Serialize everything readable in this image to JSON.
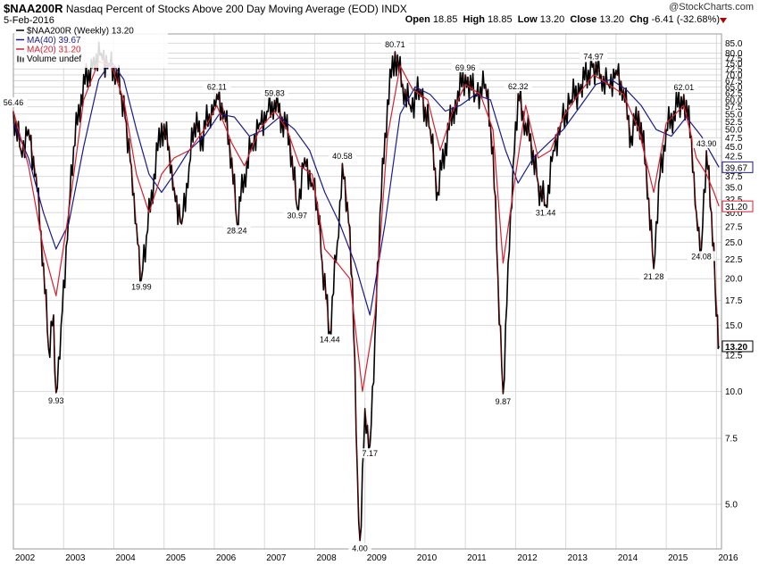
{
  "header": {
    "symbol": "$NAA200R",
    "description": "Nasdaq Percent of Stocks Above 200 Day Moving Average (EOD)",
    "exchange": "INDX",
    "date": "5-Feb-2016",
    "open_label": "Open",
    "open_value": "18.85",
    "high_label": "High",
    "high_value": "18.85",
    "low_label": "Low",
    "low_value": "13.20",
    "close_label": "Close",
    "close_value": "13.20",
    "chg_label": "Chg",
    "chg_value": "-6.41 (-32.68%)",
    "watermark": "@StockCharts.com"
  },
  "colors": {
    "price": "#000000",
    "down": "#b00000",
    "ma40": "#1a1a8c",
    "ma20": "#d42030",
    "grid": "#d9d9d9",
    "frame": "#999999"
  },
  "chart_data": {
    "type": "line",
    "scale": "log",
    "ylim": [
      3.8,
      90
    ],
    "y_ticks": [
      "85.0",
      "80.0",
      "77.5",
      "75.0",
      "72.5",
      "70.0",
      "67.5",
      "65.0",
      "62.5",
      "60.0",
      "57.5",
      "55.0",
      "52.5",
      "50.0",
      "47.5",
      "45.0",
      "42.5",
      "40.0",
      "37.5",
      "35.0",
      "32.5",
      "30.0",
      "27.5",
      "25.0",
      "22.5",
      "20.0",
      "17.5",
      "15.0",
      "12.5",
      "10.0",
      "7.5",
      "5.0"
    ],
    "x_range": [
      2002.0,
      2016.1
    ],
    "x_ticks": [
      "2002",
      "2003",
      "2004",
      "2005",
      "2006",
      "2007",
      "2008",
      "2009",
      "2010",
      "2011",
      "2012",
      "2013",
      "2014",
      "2015",
      "2016"
    ],
    "legend": [
      {
        "label": "$NAA200R (Weekly) 13.20",
        "color_key": "price",
        "marker": "line"
      },
      {
        "label": "MA(40) 39.67",
        "color_key": "ma40",
        "marker": "line"
      },
      {
        "label": "MA(20) 31.20",
        "color_key": "ma20",
        "marker": "line"
      },
      {
        "label": "Volume undef",
        "color_key": "price",
        "marker": "bars"
      }
    ],
    "right_labels": [
      {
        "text": "39.67",
        "value": 39.67,
        "color_key": "ma40"
      },
      {
        "text": "31.20",
        "value": 31.2,
        "color_key": "ma20"
      },
      {
        "text": "13.20",
        "value": 13.2,
        "color_key": "price",
        "bold": true
      }
    ],
    "annotations": [
      {
        "text": "56.46",
        "x": 2002.0,
        "y": 56.46,
        "pos": "above"
      },
      {
        "text": "9.93",
        "x": 2002.85,
        "y": 9.93,
        "pos": "below"
      },
      {
        "text": "19.99",
        "x": 2004.55,
        "y": 19.99,
        "pos": "below"
      },
      {
        "text": "62.11",
        "x": 2006.05,
        "y": 62.11,
        "pos": "above"
      },
      {
        "text": "28.24",
        "x": 2006.45,
        "y": 28.24,
        "pos": "below"
      },
      {
        "text": "59.83",
        "x": 2007.2,
        "y": 59.83,
        "pos": "above"
      },
      {
        "text": "30.97",
        "x": 2007.65,
        "y": 30.97,
        "pos": "below"
      },
      {
        "text": "40.58",
        "x": 2008.55,
        "y": 40.58,
        "pos": "above"
      },
      {
        "text": "14.44",
        "x": 2008.3,
        "y": 14.44,
        "pos": "below"
      },
      {
        "text": "4.00",
        "x": 2008.9,
        "y": 4.0,
        "pos": "below"
      },
      {
        "text": "7.17",
        "x": 2009.1,
        "y": 7.17,
        "pos": "below"
      },
      {
        "text": "80.71",
        "x": 2009.6,
        "y": 80.71,
        "pos": "above"
      },
      {
        "text": "69.96",
        "x": 2011.0,
        "y": 69.96,
        "pos": "above"
      },
      {
        "text": "9.87",
        "x": 2011.75,
        "y": 9.87,
        "pos": "below"
      },
      {
        "text": "62.32",
        "x": 2012.05,
        "y": 62.32,
        "pos": "above"
      },
      {
        "text": "31.44",
        "x": 2012.6,
        "y": 31.44,
        "pos": "below"
      },
      {
        "text": "74.97",
        "x": 2013.55,
        "y": 74.97,
        "pos": "above"
      },
      {
        "text": "21.28",
        "x": 2014.75,
        "y": 21.28,
        "pos": "below"
      },
      {
        "text": "62.01",
        "x": 2015.35,
        "y": 62.01,
        "pos": "above"
      },
      {
        "text": "43.90",
        "x": 2015.8,
        "y": 43.9,
        "pos": "above"
      },
      {
        "text": "24.08",
        "x": 2015.7,
        "y": 24.08,
        "pos": "below"
      }
    ],
    "series": [
      {
        "name": "$NAA200R (Weekly)",
        "color_key": "price",
        "points": [
          [
            2002.0,
            56
          ],
          [
            2002.15,
            44
          ],
          [
            2002.3,
            50
          ],
          [
            2002.45,
            38
          ],
          [
            2002.6,
            22
          ],
          [
            2002.7,
            13
          ],
          [
            2002.8,
            16
          ],
          [
            2002.85,
            9.93
          ],
          [
            2002.95,
            15
          ],
          [
            2003.1,
            30
          ],
          [
            2003.2,
            45
          ],
          [
            2003.35,
            62
          ],
          [
            2003.5,
            72
          ],
          [
            2003.6,
            78
          ],
          [
            2003.75,
            80
          ],
          [
            2003.9,
            75
          ],
          [
            2004.05,
            72
          ],
          [
            2004.15,
            62
          ],
          [
            2004.25,
            52
          ],
          [
            2004.35,
            40
          ],
          [
            2004.45,
            28
          ],
          [
            2004.55,
            19.99
          ],
          [
            2004.65,
            26
          ],
          [
            2004.8,
            38
          ],
          [
            2004.95,
            52
          ],
          [
            2005.1,
            45
          ],
          [
            2005.2,
            35
          ],
          [
            2005.35,
            28
          ],
          [
            2005.5,
            40
          ],
          [
            2005.6,
            52
          ],
          [
            2005.75,
            48
          ],
          [
            2005.9,
            55
          ],
          [
            2006.0,
            60
          ],
          [
            2006.05,
            62.11
          ],
          [
            2006.2,
            56
          ],
          [
            2006.35,
            42
          ],
          [
            2006.45,
            28.24
          ],
          [
            2006.6,
            38
          ],
          [
            2006.75,
            46
          ],
          [
            2006.9,
            52
          ],
          [
            2007.05,
            56
          ],
          [
            2007.2,
            59.83
          ],
          [
            2007.35,
            54
          ],
          [
            2007.5,
            48
          ],
          [
            2007.65,
            30.97
          ],
          [
            2007.8,
            42
          ],
          [
            2007.95,
            36
          ],
          [
            2008.05,
            32
          ],
          [
            2008.15,
            22
          ],
          [
            2008.3,
            14.44
          ],
          [
            2008.45,
            25
          ],
          [
            2008.55,
            40.58
          ],
          [
            2008.65,
            32
          ],
          [
            2008.75,
            20
          ],
          [
            2008.85,
            6
          ],
          [
            2008.9,
            4.0
          ],
          [
            2009.0,
            9
          ],
          [
            2009.1,
            7.17
          ],
          [
            2009.2,
            14
          ],
          [
            2009.3,
            30
          ],
          [
            2009.45,
            60
          ],
          [
            2009.6,
            80.71
          ],
          [
            2009.75,
            66
          ],
          [
            2009.9,
            58
          ],
          [
            2010.1,
            64
          ],
          [
            2010.3,
            50
          ],
          [
            2010.45,
            34
          ],
          [
            2010.6,
            46
          ],
          [
            2010.8,
            60
          ],
          [
            2011.0,
            69.96
          ],
          [
            2011.2,
            62
          ],
          [
            2011.4,
            66
          ],
          [
            2011.55,
            45
          ],
          [
            2011.65,
            20
          ],
          [
            2011.75,
            9.87
          ],
          [
            2011.85,
            22
          ],
          [
            2011.95,
            40
          ],
          [
            2012.05,
            62.32
          ],
          [
            2012.2,
            52
          ],
          [
            2012.35,
            44
          ],
          [
            2012.45,
            36
          ],
          [
            2012.6,
            31.44
          ],
          [
            2012.75,
            44
          ],
          [
            2012.9,
            52
          ],
          [
            2013.1,
            60
          ],
          [
            2013.3,
            66
          ],
          [
            2013.55,
            74.97
          ],
          [
            2013.7,
            70
          ],
          [
            2013.85,
            66
          ],
          [
            2014.0,
            72
          ],
          [
            2014.15,
            64
          ],
          [
            2014.3,
            48
          ],
          [
            2014.45,
            56
          ],
          [
            2014.6,
            40
          ],
          [
            2014.75,
            21.28
          ],
          [
            2014.85,
            36
          ],
          [
            2015.0,
            50
          ],
          [
            2015.15,
            56
          ],
          [
            2015.35,
            62.01
          ],
          [
            2015.5,
            48
          ],
          [
            2015.6,
            30
          ],
          [
            2015.7,
            24.08
          ],
          [
            2015.8,
            43.9
          ],
          [
            2015.9,
            30
          ],
          [
            2015.97,
            19.6
          ],
          [
            2016.02,
            16
          ],
          [
            2016.05,
            13.2
          ]
        ]
      },
      {
        "name": "MA(40)",
        "color_key": "ma40",
        "points": [
          [
            2002.0,
            52
          ],
          [
            2002.3,
            42
          ],
          [
            2002.6,
            30
          ],
          [
            2002.85,
            24
          ],
          [
            2003.1,
            28
          ],
          [
            2003.4,
            45
          ],
          [
            2003.7,
            68
          ],
          [
            2003.95,
            76
          ],
          [
            2004.2,
            68
          ],
          [
            2004.45,
            50
          ],
          [
            2004.7,
            38
          ],
          [
            2004.95,
            34
          ],
          [
            2005.2,
            38
          ],
          [
            2005.5,
            44
          ],
          [
            2005.8,
            48
          ],
          [
            2006.1,
            55
          ],
          [
            2006.4,
            54
          ],
          [
            2006.7,
            48
          ],
          [
            2007.0,
            50
          ],
          [
            2007.3,
            54
          ],
          [
            2007.6,
            50
          ],
          [
            2007.9,
            44
          ],
          [
            2008.2,
            34
          ],
          [
            2008.5,
            28
          ],
          [
            2008.8,
            22
          ],
          [
            2009.1,
            16
          ],
          [
            2009.4,
            28
          ],
          [
            2009.7,
            55
          ],
          [
            2010.0,
            65
          ],
          [
            2010.3,
            62
          ],
          [
            2010.6,
            56
          ],
          [
            2010.9,
            58
          ],
          [
            2011.2,
            62
          ],
          [
            2011.5,
            60
          ],
          [
            2011.8,
            44
          ],
          [
            2012.05,
            36
          ],
          [
            2012.35,
            42
          ],
          [
            2012.65,
            46
          ],
          [
            2012.95,
            50
          ],
          [
            2013.3,
            58
          ],
          [
            2013.6,
            66
          ],
          [
            2013.9,
            68
          ],
          [
            2014.2,
            64
          ],
          [
            2014.5,
            58
          ],
          [
            2014.8,
            50
          ],
          [
            2015.1,
            48
          ],
          [
            2015.4,
            54
          ],
          [
            2015.7,
            48
          ],
          [
            2015.9,
            43
          ],
          [
            2016.05,
            39.67
          ]
        ]
      },
      {
        "name": "MA(20)",
        "color_key": "ma20",
        "points": [
          [
            2002.0,
            56
          ],
          [
            2002.3,
            40
          ],
          [
            2002.6,
            24
          ],
          [
            2002.85,
            18
          ],
          [
            2003.1,
            30
          ],
          [
            2003.4,
            60
          ],
          [
            2003.7,
            76
          ],
          [
            2003.95,
            74
          ],
          [
            2004.2,
            60
          ],
          [
            2004.45,
            38
          ],
          [
            2004.7,
            30
          ],
          [
            2004.95,
            38
          ],
          [
            2005.2,
            42
          ],
          [
            2005.5,
            44
          ],
          [
            2005.8,
            50
          ],
          [
            2006.05,
            58
          ],
          [
            2006.35,
            46
          ],
          [
            2006.6,
            40
          ],
          [
            2006.9,
            50
          ],
          [
            2007.2,
            56
          ],
          [
            2007.45,
            50
          ],
          [
            2007.7,
            40
          ],
          [
            2007.95,
            38
          ],
          [
            2008.2,
            24
          ],
          [
            2008.45,
            22
          ],
          [
            2008.7,
            20
          ],
          [
            2008.95,
            10
          ],
          [
            2009.2,
            16
          ],
          [
            2009.45,
            48
          ],
          [
            2009.7,
            74
          ],
          [
            2009.95,
            64
          ],
          [
            2010.25,
            60
          ],
          [
            2010.5,
            44
          ],
          [
            2010.75,
            56
          ],
          [
            2011.0,
            66
          ],
          [
            2011.3,
            62
          ],
          [
            2011.55,
            50
          ],
          [
            2011.75,
            22
          ],
          [
            2011.95,
            34
          ],
          [
            2012.2,
            58
          ],
          [
            2012.45,
            42
          ],
          [
            2012.7,
            44
          ],
          [
            2012.95,
            54
          ],
          [
            2013.25,
            62
          ],
          [
            2013.55,
            70
          ],
          [
            2013.85,
            66
          ],
          [
            2014.15,
            62
          ],
          [
            2014.45,
            50
          ],
          [
            2014.75,
            34
          ],
          [
            2015.0,
            52
          ],
          [
            2015.35,
            58
          ],
          [
            2015.6,
            42
          ],
          [
            2015.8,
            38
          ],
          [
            2015.95,
            34
          ],
          [
            2016.05,
            31.2
          ]
        ]
      }
    ]
  }
}
